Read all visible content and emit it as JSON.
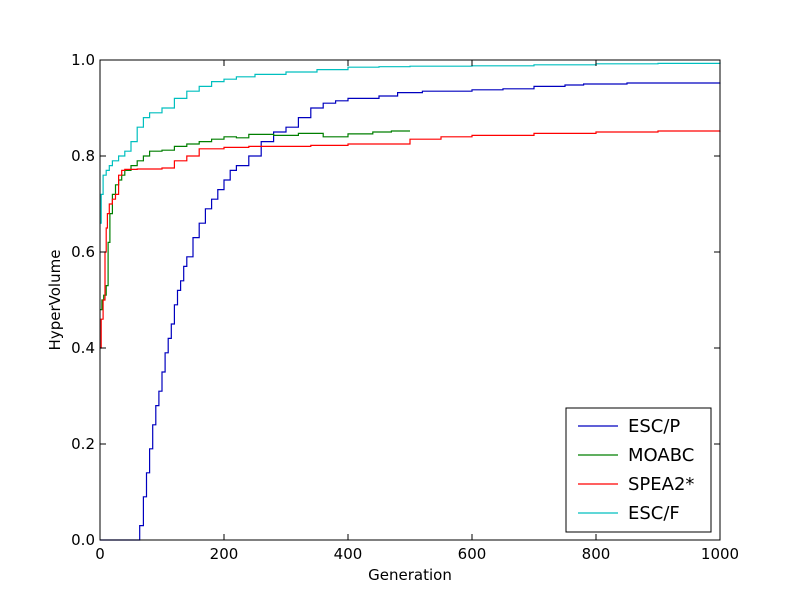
{
  "chart_data": {
    "type": "line",
    "title": "",
    "xlabel": "Generation",
    "ylabel": "HyperVolume",
    "xlim": [
      0,
      1000
    ],
    "ylim": [
      0.0,
      1.0
    ],
    "xticks": [
      0,
      200,
      400,
      600,
      800,
      1000
    ],
    "yticks": [
      0.0,
      0.2,
      0.4,
      0.6,
      0.8,
      1.0
    ],
    "xtick_labels": [
      "0",
      "200",
      "400",
      "600",
      "800",
      "1000"
    ],
    "ytick_labels": [
      "0.0",
      "0.2",
      "0.4",
      "0.6",
      "0.8",
      "1.0"
    ],
    "grid": false,
    "legend_position": "bottom-right",
    "series": [
      {
        "name": "ESC/P",
        "color": "#0000bf",
        "points": [
          [
            0,
            0.0
          ],
          [
            40,
            0.0
          ],
          [
            60,
            0.0
          ],
          [
            64,
            0.03
          ],
          [
            70,
            0.09
          ],
          [
            75,
            0.14
          ],
          [
            80,
            0.19
          ],
          [
            85,
            0.24
          ],
          [
            90,
            0.28
          ],
          [
            95,
            0.31
          ],
          [
            100,
            0.35
          ],
          [
            105,
            0.39
          ],
          [
            110,
            0.42
          ],
          [
            115,
            0.45
          ],
          [
            120,
            0.49
          ],
          [
            125,
            0.52
          ],
          [
            130,
            0.54
          ],
          [
            135,
            0.57
          ],
          [
            140,
            0.59
          ],
          [
            150,
            0.63
          ],
          [
            160,
            0.66
          ],
          [
            170,
            0.69
          ],
          [
            180,
            0.71
          ],
          [
            190,
            0.73
          ],
          [
            200,
            0.75
          ],
          [
            210,
            0.77
          ],
          [
            220,
            0.78
          ],
          [
            240,
            0.8
          ],
          [
            260,
            0.83
          ],
          [
            280,
            0.85
          ],
          [
            300,
            0.86
          ],
          [
            320,
            0.88
          ],
          [
            340,
            0.9
          ],
          [
            360,
            0.91
          ],
          [
            380,
            0.915
          ],
          [
            400,
            0.92
          ],
          [
            450,
            0.925
          ],
          [
            480,
            0.932
          ],
          [
            520,
            0.935
          ],
          [
            600,
            0.938
          ],
          [
            650,
            0.94
          ],
          [
            700,
            0.945
          ],
          [
            750,
            0.948
          ],
          [
            780,
            0.95
          ],
          [
            850,
            0.952
          ],
          [
            1000,
            0.953
          ]
        ]
      },
      {
        "name": "MOABC",
        "color": "#007f00",
        "points": [
          [
            0,
            0.48
          ],
          [
            3,
            0.5
          ],
          [
            6,
            0.51
          ],
          [
            10,
            0.53
          ],
          [
            13,
            0.62
          ],
          [
            16,
            0.68
          ],
          [
            20,
            0.72
          ],
          [
            25,
            0.74
          ],
          [
            30,
            0.75
          ],
          [
            35,
            0.76
          ],
          [
            40,
            0.77
          ],
          [
            50,
            0.78
          ],
          [
            60,
            0.79
          ],
          [
            70,
            0.8
          ],
          [
            80,
            0.81
          ],
          [
            100,
            0.812
          ],
          [
            120,
            0.82
          ],
          [
            140,
            0.825
          ],
          [
            160,
            0.83
          ],
          [
            180,
            0.835
          ],
          [
            200,
            0.84
          ],
          [
            220,
            0.838
          ],
          [
            240,
            0.845
          ],
          [
            280,
            0.843
          ],
          [
            320,
            0.847
          ],
          [
            360,
            0.84
          ],
          [
            400,
            0.846
          ],
          [
            440,
            0.85
          ],
          [
            470,
            0.852
          ],
          [
            500,
            0.852
          ]
        ]
      },
      {
        "name": "SPEA2*",
        "color": "#ff0000",
        "points": [
          [
            0,
            0.4
          ],
          [
            2,
            0.46
          ],
          [
            5,
            0.5
          ],
          [
            8,
            0.6
          ],
          [
            10,
            0.65
          ],
          [
            12,
            0.68
          ],
          [
            15,
            0.7
          ],
          [
            20,
            0.71
          ],
          [
            25,
            0.72
          ],
          [
            30,
            0.76
          ],
          [
            35,
            0.77
          ],
          [
            40,
            0.772
          ],
          [
            60,
            0.773
          ],
          [
            100,
            0.775
          ],
          [
            120,
            0.79
          ],
          [
            140,
            0.8
          ],
          [
            160,
            0.815
          ],
          [
            200,
            0.818
          ],
          [
            240,
            0.82
          ],
          [
            300,
            0.82
          ],
          [
            340,
            0.822
          ],
          [
            400,
            0.825
          ],
          [
            500,
            0.835
          ],
          [
            550,
            0.84
          ],
          [
            600,
            0.843
          ],
          [
            700,
            0.847
          ],
          [
            800,
            0.85
          ],
          [
            900,
            0.852
          ],
          [
            1000,
            0.853
          ]
        ]
      },
      {
        "name": "ESC/F",
        "color": "#00bfbf",
        "points": [
          [
            0,
            0.66
          ],
          [
            2,
            0.72
          ],
          [
            5,
            0.76
          ],
          [
            10,
            0.77
          ],
          [
            15,
            0.78
          ],
          [
            20,
            0.79
          ],
          [
            30,
            0.8
          ],
          [
            40,
            0.81
          ],
          [
            50,
            0.83
          ],
          [
            60,
            0.86
          ],
          [
            70,
            0.88
          ],
          [
            80,
            0.89
          ],
          [
            100,
            0.9
          ],
          [
            120,
            0.92
          ],
          [
            140,
            0.935
          ],
          [
            160,
            0.945
          ],
          [
            180,
            0.955
          ],
          [
            200,
            0.96
          ],
          [
            220,
            0.965
          ],
          [
            250,
            0.97
          ],
          [
            300,
            0.975
          ],
          [
            350,
            0.98
          ],
          [
            400,
            0.985
          ],
          [
            450,
            0.986
          ],
          [
            500,
            0.987
          ],
          [
            600,
            0.988
          ],
          [
            700,
            0.99
          ],
          [
            800,
            0.992
          ],
          [
            900,
            0.993
          ],
          [
            1000,
            0.995
          ]
        ]
      }
    ]
  }
}
